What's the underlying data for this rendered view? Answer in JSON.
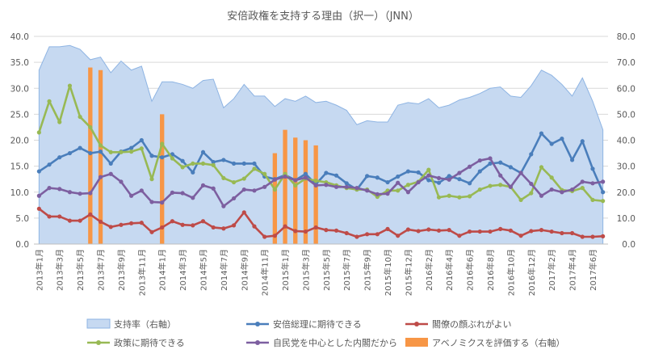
{
  "chart_data": {
    "type": "line",
    "title": "安倍政権を支持する理由（択一）（JNN）",
    "xlabel": "",
    "ylabel": "",
    "ylim": [
      0,
      40
    ],
    "y2lim": [
      0,
      80
    ],
    "left_ticks": [
      "0.0",
      "5.0",
      "10.0",
      "15.0",
      "20.0",
      "25.0",
      "30.0",
      "35.0",
      "40.0"
    ],
    "right_ticks": [
      "0.0",
      "10.0",
      "20.0",
      "30.0",
      "40.0",
      "50.0",
      "60.0",
      "70.0",
      "80.0"
    ],
    "x_labels": [
      {
        "i": 0,
        "text": "2013年1月"
      },
      {
        "i": 2,
        "text": "2013年3月"
      },
      {
        "i": 4,
        "text": "2013年5月"
      },
      {
        "i": 6,
        "text": "2013年7月"
      },
      {
        "i": 8,
        "text": "2013年9月"
      },
      {
        "i": 10,
        "text": "2013年11月"
      },
      {
        "i": 12,
        "text": "2014年1月"
      },
      {
        "i": 14,
        "text": "2014年3月"
      },
      {
        "i": 16,
        "text": "2014年5月"
      },
      {
        "i": 18,
        "text": "2014年7月"
      },
      {
        "i": 20,
        "text": "2014年9月"
      },
      {
        "i": 22,
        "text": "2014年11月"
      },
      {
        "i": 24,
        "text": "2015年1月"
      },
      {
        "i": 26,
        "text": "2015年3月"
      },
      {
        "i": 28,
        "text": "2015年5月"
      },
      {
        "i": 30,
        "text": "2015年7月"
      },
      {
        "i": 32,
        "text": "2015年9月"
      },
      {
        "i": 34,
        "text": "2015年10月"
      },
      {
        "i": 36,
        "text": "2015年12月"
      },
      {
        "i": 38,
        "text": "2016年2月"
      },
      {
        "i": 40,
        "text": "2016年4月"
      },
      {
        "i": 42,
        "text": "2016年6月"
      },
      {
        "i": 44,
        "text": "2016年8月"
      },
      {
        "i": 46,
        "text": "2016年10月"
      },
      {
        "i": 48,
        "text": "2016年12月"
      },
      {
        "i": 50,
        "text": "2017年2月"
      },
      {
        "i": 52,
        "text": "2017年4月"
      },
      {
        "i": 54,
        "text": "2017年6月"
      }
    ],
    "n_points": 56,
    "area_series": {
      "name": "支持率（右軸）",
      "axis": "right",
      "color": "#c6d9f1",
      "border": "#8eb4e3",
      "values": [
        67,
        76,
        76,
        76.5,
        75,
        71,
        72,
        66,
        70.5,
        67,
        68.5,
        55,
        62.5,
        62.5,
        61.5,
        60,
        63,
        63.5,
        52.5,
        56,
        61.5,
        57,
        57,
        53,
        56,
        55,
        57,
        54.5,
        55,
        53.5,
        51.5,
        46,
        47.5,
        47,
        47,
        53.5,
        54.5,
        54,
        56,
        52.5,
        53.5,
        55.5,
        56.5,
        58,
        60,
        60.5,
        57,
        56.5,
        61,
        67,
        65,
        61.5,
        57,
        64,
        55,
        44
      ]
    },
    "bar_series": {
      "name": "アベノミクスを評価する（右軸）",
      "axis": "right",
      "color": "#f79646",
      "points": [
        {
          "i": 5,
          "value": 68
        },
        {
          "i": 6,
          "value": 67
        },
        {
          "i": 12,
          "value": 50
        },
        {
          "i": 23,
          "value": 35
        },
        {
          "i": 24,
          "value": 44
        },
        {
          "i": 25,
          "value": 41
        },
        {
          "i": 26,
          "value": 40
        },
        {
          "i": 27,
          "value": 38
        }
      ]
    },
    "series": [
      {
        "name": "安倍総理に期待できる",
        "color": "#4a7ebb",
        "values": [
          14,
          15.3,
          16.7,
          17.5,
          18.5,
          17.5,
          17.8,
          15.5,
          17.8,
          18.5,
          20,
          17,
          16.7,
          17.3,
          16,
          13.8,
          17.7,
          15.8,
          16.2,
          15.5,
          15.5,
          15.5,
          13,
          12.5,
          13.3,
          12.3,
          13.5,
          11.5,
          13.7,
          13.2,
          11.7,
          10.5,
          13.1,
          12.8,
          11.9,
          13,
          14,
          13.8,
          12.3,
          11.8,
          13.1,
          12.5,
          11.7,
          14,
          15.5,
          15.7,
          14.8,
          13.7,
          17.3,
          21.3,
          19.3,
          20.3,
          16.2,
          19.8,
          14.5,
          10
        ]
      },
      {
        "name": "閣僚の顔ぶれがよい",
        "color": "#be4b48",
        "values": [
          6.8,
          5.3,
          5.3,
          4.5,
          4.5,
          5.7,
          4.3,
          3.3,
          3.7,
          4,
          4.1,
          2.3,
          3.2,
          4.4,
          3.7,
          3.6,
          4.4,
          3.2,
          3,
          3.6,
          6.1,
          3.4,
          1.4,
          1.6,
          3.4,
          2.5,
          2.4,
          3.2,
          2.7,
          2.6,
          2.1,
          1.4,
          1.9,
          1.9,
          2.9,
          1.6,
          2.8,
          2.5,
          2.8,
          2.6,
          2.7,
          1.6,
          2.4,
          2.4,
          2.4,
          2.9,
          2.6,
          1.6,
          2.5,
          2.7,
          2.4,
          2.1,
          2.1,
          1.4,
          1.4,
          1.5
        ]
      },
      {
        "name": "政策に期待できる",
        "color": "#98b954",
        "values": [
          21.5,
          27.5,
          23.5,
          30.5,
          24.5,
          22.5,
          19,
          17.7,
          17.7,
          17.8,
          18.4,
          12.5,
          19.3,
          16.5,
          14.8,
          15.5,
          15.5,
          15.2,
          12.7,
          11.9,
          12.6,
          14.5,
          13.5,
          10.5,
          13.5,
          11.3,
          12.6,
          12.2,
          11.9,
          11.3,
          10.8,
          10.5,
          10.5,
          9.1,
          10.3,
          10.3,
          11.4,
          12,
          14.3,
          9,
          9.3,
          9,
          9.2,
          10.5,
          11.2,
          11.4,
          11,
          8.5,
          9.8,
          14.8,
          12.8,
          10.4,
          10.2,
          10.8,
          8.5,
          8.3
        ]
      },
      {
        "name": "自民党を中心とした内閣だから",
        "color": "#7d5fa0",
        "values": [
          9.3,
          10.8,
          10.6,
          10,
          9.7,
          9.8,
          12.9,
          13.5,
          12,
          9.3,
          10.3,
          8.1,
          8,
          9.9,
          9.8,
          8.9,
          11.3,
          10.7,
          7.3,
          8.8,
          10.5,
          10.3,
          11,
          12.4,
          13,
          12.3,
          12.8,
          11.3,
          11.4,
          11,
          11,
          10.8,
          10.3,
          9.6,
          9.7,
          11.8,
          10,
          11.9,
          13.2,
          12.7,
          12.4,
          13.7,
          14.9,
          16.1,
          16.5,
          13.2,
          11,
          13.7,
          11.6,
          9.3,
          10.5,
          10,
          10.5,
          12,
          11.7,
          12
        ]
      }
    ],
    "legend": [
      {
        "name": "支持率（右軸）",
        "kind": "area",
        "color": "#c6d9f1"
      },
      {
        "name": "安倍総理に期待できる",
        "kind": "line",
        "color": "#4a7ebb"
      },
      {
        "name": "閣僚の顔ぶれがよい",
        "kind": "line",
        "color": "#be4b48"
      },
      {
        "name": "政策に期待できる",
        "kind": "line",
        "color": "#98b954"
      },
      {
        "name": "自民党を中心とした内閣だから",
        "kind": "line",
        "color": "#7d5fa0"
      },
      {
        "name": "アベノミクスを評価する（右軸）",
        "kind": "bar",
        "color": "#f79646"
      }
    ],
    "legend_position": "bottom",
    "grid": true
  }
}
